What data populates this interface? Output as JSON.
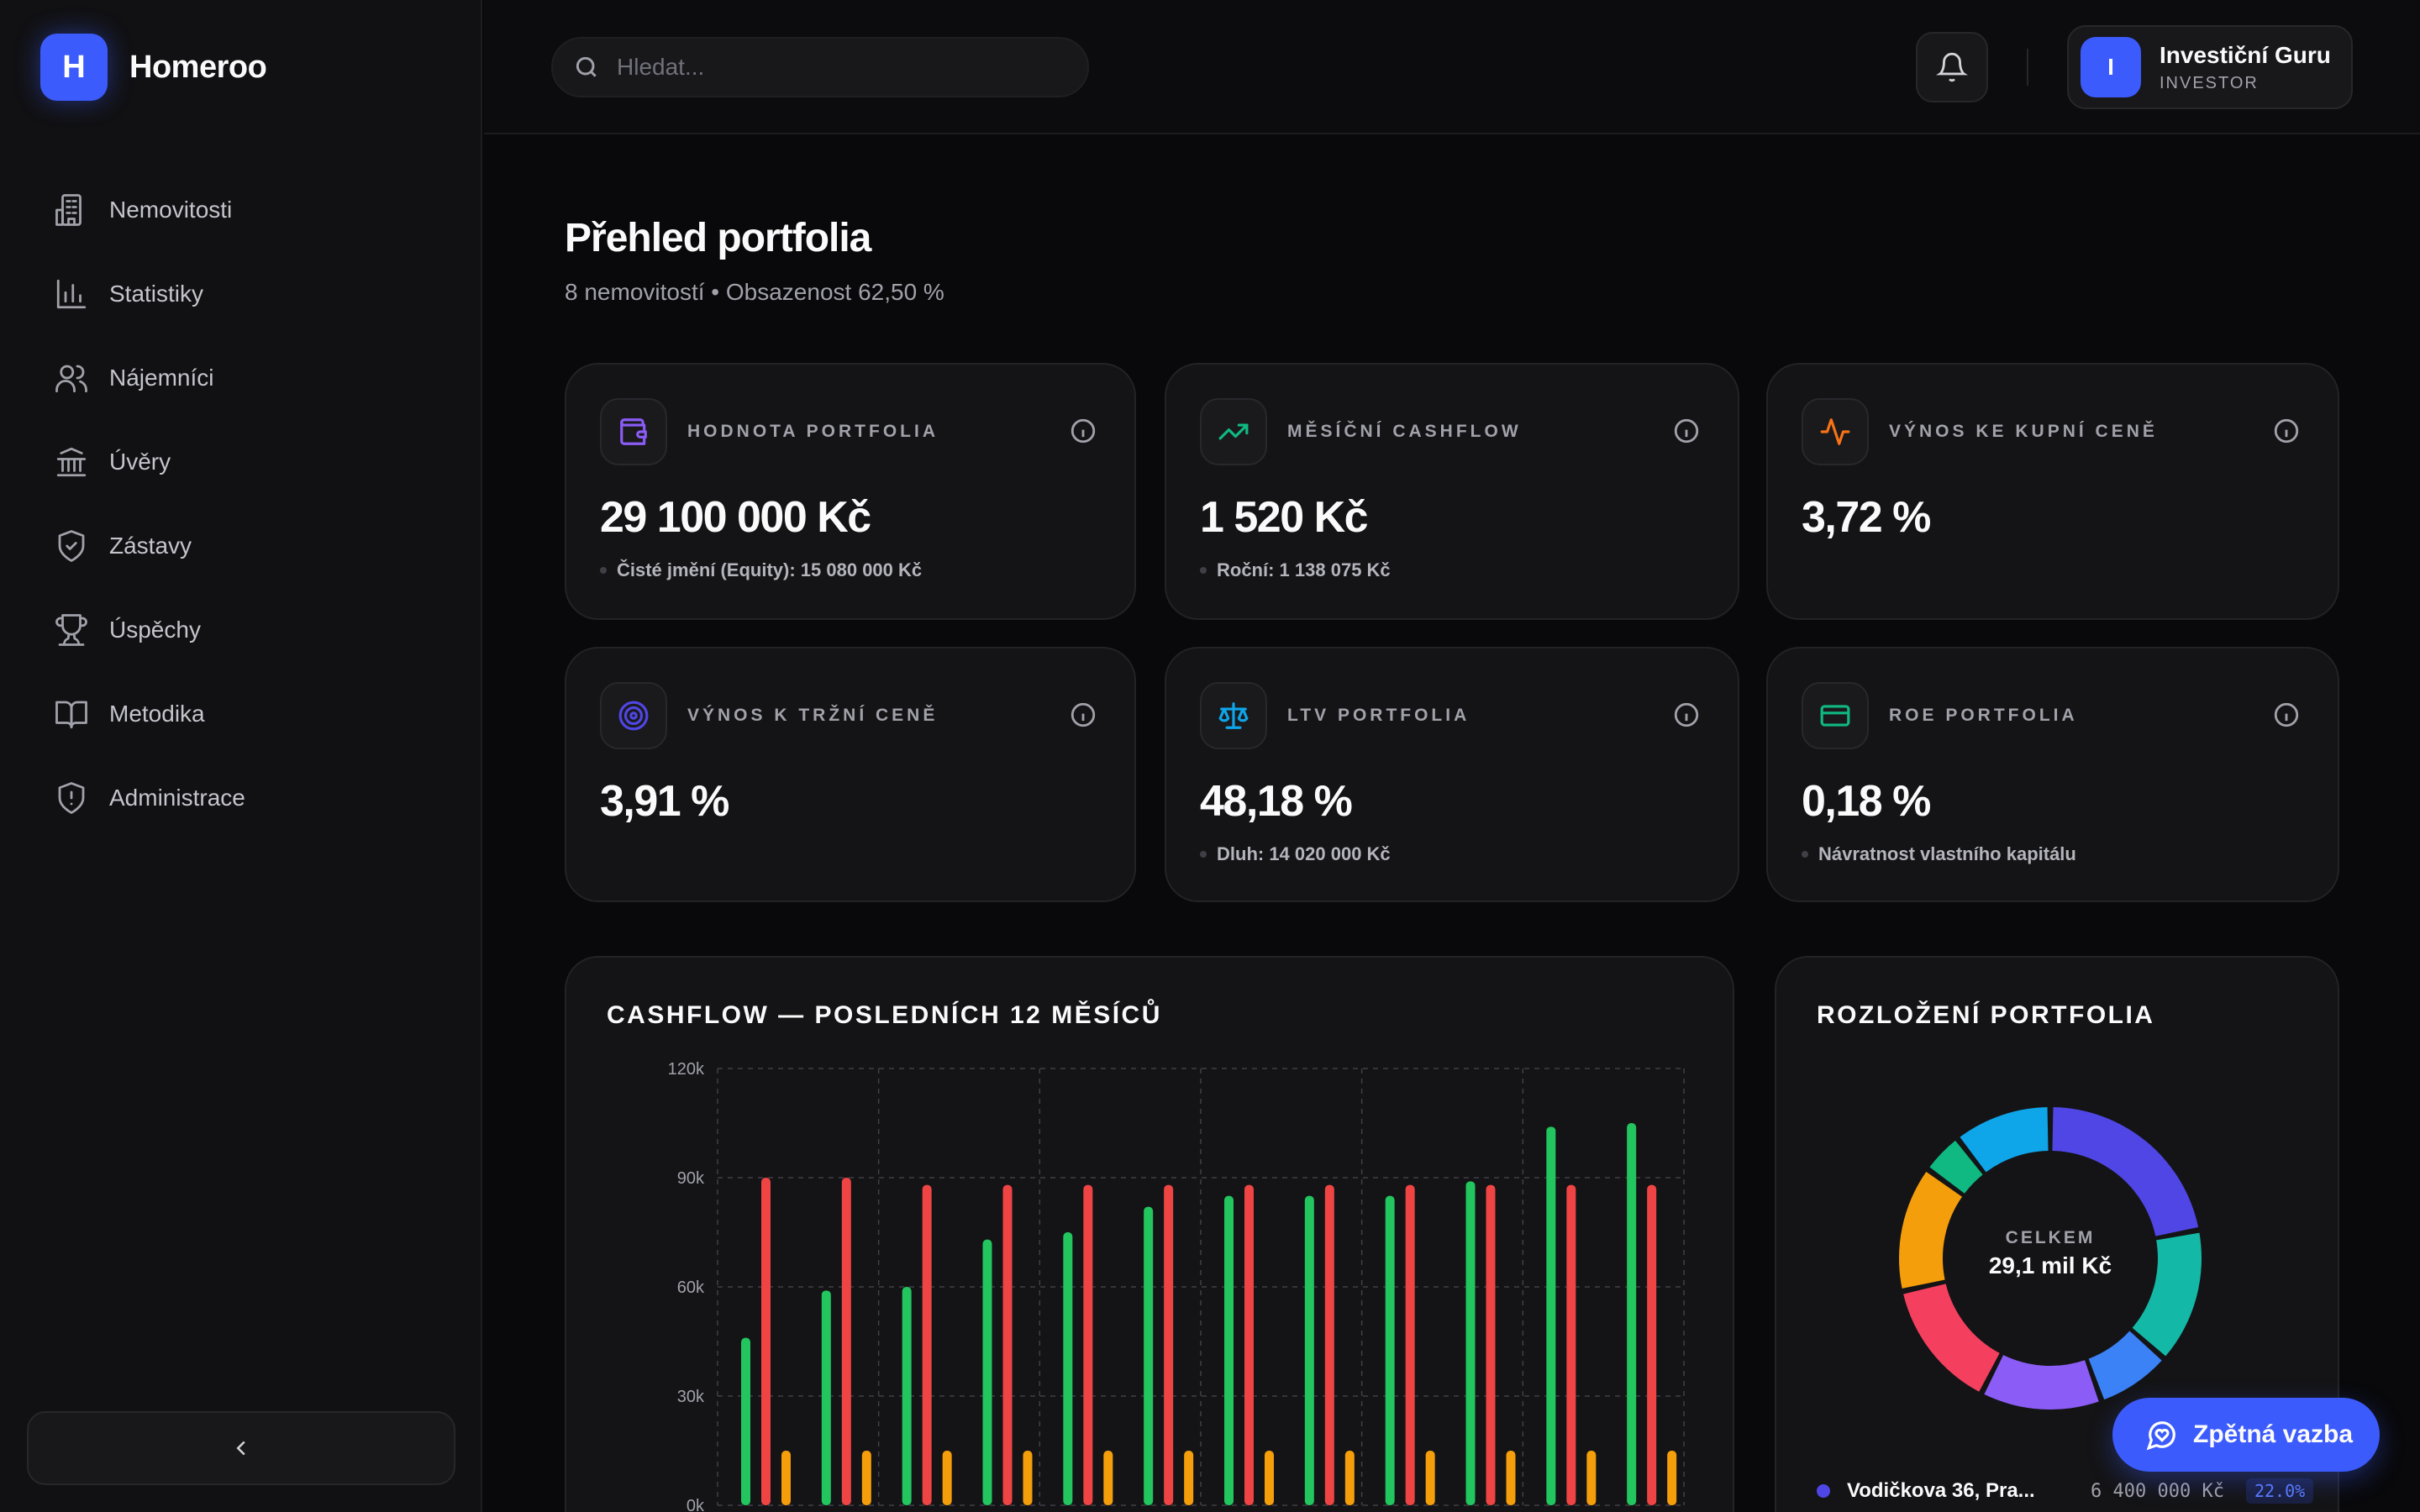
{
  "brand": {
    "logo_letter": "H",
    "name": "Homeroo"
  },
  "sidebar": {
    "items": [
      {
        "label": "Nemovitosti",
        "icon": "building-icon"
      },
      {
        "label": "Statistiky",
        "icon": "bar-chart-icon"
      },
      {
        "label": "Nájemníci",
        "icon": "users-icon"
      },
      {
        "label": "Úvěry",
        "icon": "bank-icon"
      },
      {
        "label": "Zástavy",
        "icon": "shield-check-icon"
      },
      {
        "label": "Úspěchy",
        "icon": "trophy-icon"
      },
      {
        "label": "Metodika",
        "icon": "book-open-icon"
      },
      {
        "label": "Administrace",
        "icon": "shield-alert-icon"
      }
    ],
    "collapse_icon": "chevron-left-icon"
  },
  "header": {
    "search_placeholder": "Hledat...",
    "user": {
      "initial": "I",
      "name": "Investiční Guru",
      "role": "INVESTOR"
    }
  },
  "page": {
    "title": "Přehled portfolia",
    "subtitle": "8 nemovitostí • Obsazenost 62,50 %"
  },
  "kpis": [
    {
      "label": "HODNOTA PORTFOLIA",
      "value": "29 100 000 Kč",
      "note": "Čisté jmění (Equity): 15 080 000 Kč",
      "icon": "wallet-icon",
      "color": "#8b5cf6"
    },
    {
      "label": "MĚSÍČNÍ CASHFLOW",
      "value": "1 520 Kč",
      "note": "Roční: 1 138 075 Kč",
      "icon": "trending-up-icon",
      "color": "#10b981"
    },
    {
      "label": "VÝNOS KE KUPNÍ CENĚ",
      "value": "3,72 %",
      "note": "",
      "icon": "activity-icon",
      "color": "#f97316"
    },
    {
      "label": "VÝNOS K TRŽNÍ CENĚ",
      "value": "3,91 %",
      "note": "",
      "icon": "target-icon",
      "color": "#4f46e5"
    },
    {
      "label": "LTV PORTFOLIA",
      "value": "48,18 %",
      "note": "Dluh: 14 020 000 Kč",
      "icon": "scale-icon",
      "color": "#0ea5e9"
    },
    {
      "label": "ROE PORTFOLIA",
      "value": "0,18 %",
      "note": "Návratnost vlastního kapitálu",
      "icon": "credit-card-icon",
      "color": "#10b981"
    }
  ],
  "cashflow_chart": {
    "title": "CASHFLOW — POSLEDNÍCH 12 MĚSÍCŮ",
    "chart_data": {
      "type": "bar",
      "ylim": [
        0,
        120000
      ],
      "y_ticks": [
        "0k",
        "30k",
        "60k",
        "90k",
        "120k"
      ],
      "y_tick_values": [
        0,
        30000,
        60000,
        90000,
        120000
      ],
      "series": [
        {
          "color": "#22c55e",
          "values": [
            46000,
            59000,
            60000,
            73000,
            75000,
            82000,
            85000,
            85000,
            85000,
            89000,
            104000,
            105000
          ]
        },
        {
          "color": "#ef4444",
          "values": [
            90000,
            90000,
            88000,
            88000,
            88000,
            88000,
            88000,
            88000,
            88000,
            88000,
            88000,
            88000
          ]
        },
        {
          "color": "#f59e0b",
          "values": [
            15000,
            15000,
            15000,
            15000,
            15000,
            15000,
            15000,
            15000,
            15000,
            15000,
            15000,
            15000
          ]
        }
      ]
    }
  },
  "portfolio_chart": {
    "title": "ROZLOŽENÍ PORTFOLIA",
    "center_label": "CELKEM",
    "center_value": "29,1 mil Kč",
    "chart_data": {
      "type": "pie",
      "slices": [
        {
          "value": 22.0,
          "color": "#4f46e5"
        },
        {
          "value": 14.5,
          "color": "#14b8a6"
        },
        {
          "value": 8.0,
          "color": "#3b82f6"
        },
        {
          "value": 13.0,
          "color": "#8b5cf6"
        },
        {
          "value": 14.0,
          "color": "#f43f5e"
        },
        {
          "value": 13.5,
          "color": "#f59e0b"
        },
        {
          "value": 4.5,
          "color": "#10b981"
        },
        {
          "value": 10.5,
          "color": "#0ea5e9"
        }
      ]
    },
    "legend": [
      {
        "name": "Vodičkova 36, Pra...",
        "value": "6 400 000 Kč",
        "pct": "22.0%",
        "color": "#4f46e5"
      }
    ]
  },
  "feedback_button": {
    "label": "Zpětná vazba",
    "icon": "message-heart-icon"
  }
}
